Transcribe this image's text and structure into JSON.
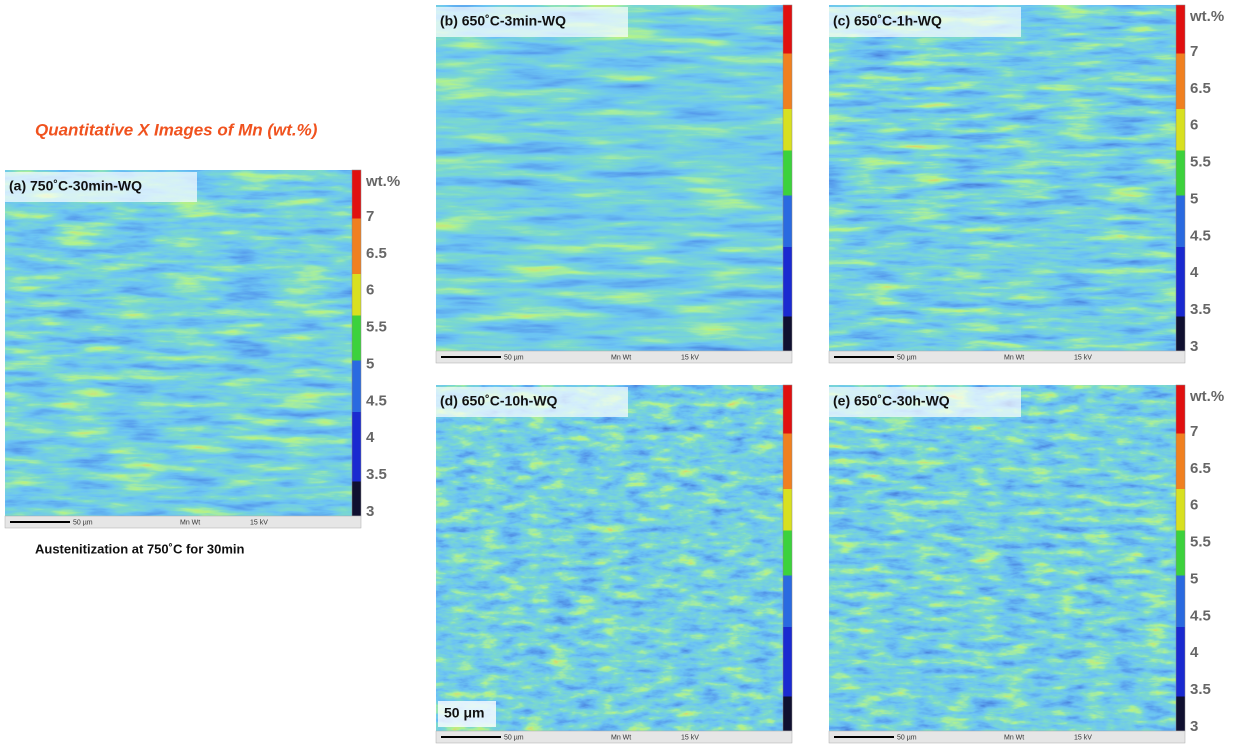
{
  "title": "Quantitative X Images of Mn  (wt.%)",
  "caption": "Austenitization at 750˚C for 30min",
  "scale_label": "50 μm",
  "footer": {
    "scale": "50 µm",
    "signal": "Mn Wt",
    "voltage": "15 kV"
  },
  "colorbar": {
    "unit": "wt.%",
    "ticks": [
      7,
      6.5,
      6,
      5.5,
      5,
      4.5,
      4,
      3.5,
      3
    ]
  },
  "panels": [
    {
      "label": "(a) 750˚C-30min-WQ"
    },
    {
      "label": "(b) 650˚C-3min-WQ"
    },
    {
      "label": "(c) 650˚C-1h-WQ"
    },
    {
      "label": "(d) 650˚C-10h-WQ"
    },
    {
      "label": "(e) 650˚C-30h-WQ"
    }
  ]
}
